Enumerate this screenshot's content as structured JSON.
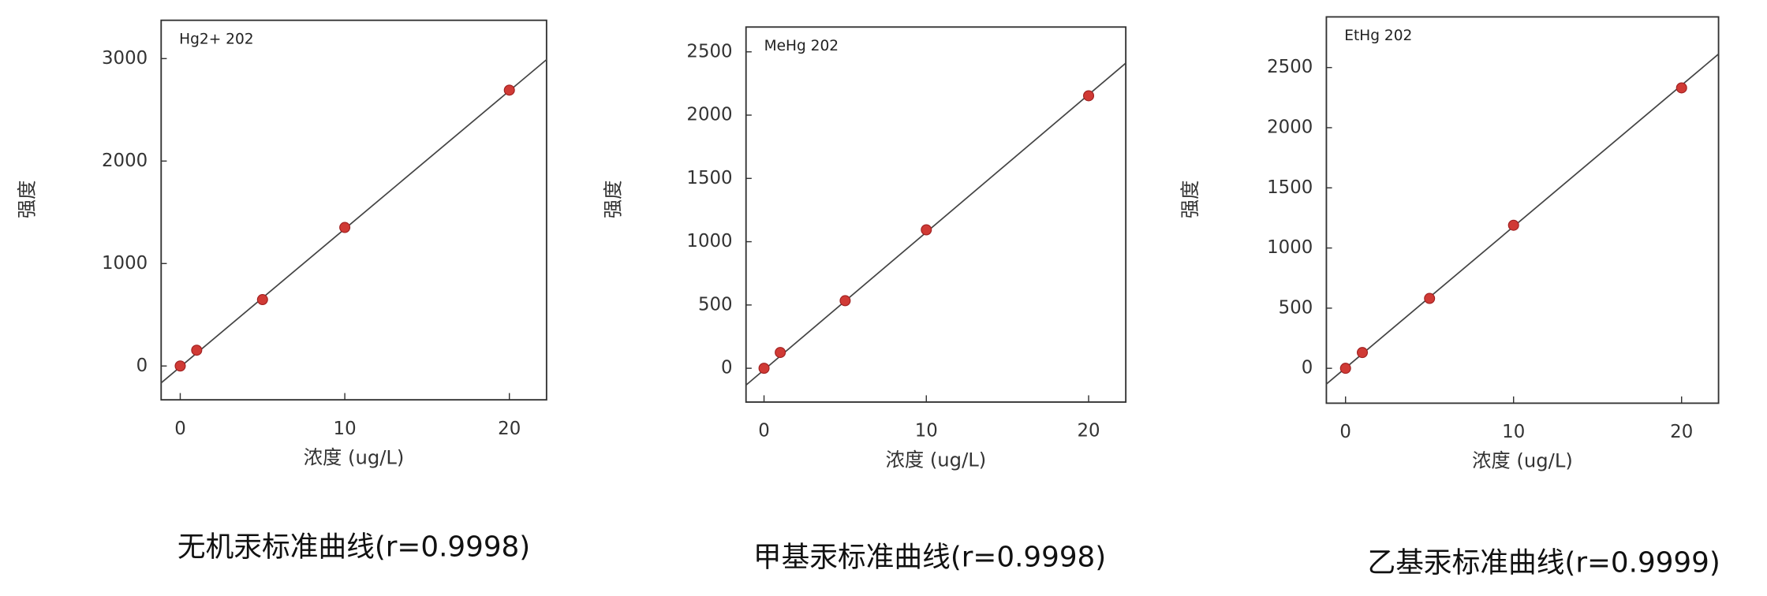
{
  "chart_data": [
    {
      "type": "scatter",
      "title": "Hg2+ 202",
      "caption": "无机汞标准曲线(r=0.9998)",
      "x_label": "浓度 (ug/L)",
      "y_label": "强度",
      "x": [
        0,
        1,
        5,
        10,
        20
      ],
      "values": [
        0,
        154,
        648,
        1352,
        2692
      ],
      "color": "#d03a35",
      "fit_line": {
        "x": [
          -1.16,
          22.26
        ],
        "values": [
          -165,
          2990
        ],
        "color": "#444444"
      },
      "xlim": [
        -1.16,
        22.26
      ],
      "ylim": [
        -330,
        3374
      ],
      "xticks": [
        0,
        10,
        20
      ],
      "yticks": [
        0,
        1000,
        2000,
        3000
      ]
    },
    {
      "type": "scatter",
      "title": "MeHg 202",
      "caption": "甲基汞标准曲线(r=0.9998)",
      "x_label": "浓度 (ug/L)",
      "y_label": "强度",
      "x": [
        0,
        1,
        5,
        10,
        20
      ],
      "values": [
        0,
        125,
        534,
        1094,
        2153
      ],
      "color": "#d03a35",
      "fit_line": {
        "x": [
          -1.11,
          22.29
        ],
        "values": [
          -133,
          2411
        ],
        "color": "#444444"
      },
      "xlim": [
        -1.11,
        22.29
      ],
      "ylim": [
        -267,
        2696
      ],
      "xticks": [
        0,
        10,
        20
      ],
      "yticks": [
        0,
        500,
        1000,
        1500,
        2000,
        2500
      ]
    },
    {
      "type": "scatter",
      "title": "EtHg 202",
      "caption": "乙基汞标准曲线(r=0.9999)",
      "x_label": "浓度 (ug/L)",
      "y_label": "强度",
      "x": [
        0,
        1,
        5,
        10,
        20
      ],
      "values": [
        0,
        131,
        581,
        1189,
        2331
      ],
      "color": "#d03a35",
      "fit_line": {
        "x": [
          -1.14,
          22.2
        ],
        "values": [
          -131,
          2612
        ],
        "color": "#444444"
      },
      "xlim": [
        -1.14,
        22.2
      ],
      "ylim": [
        -290,
        2921
      ],
      "xticks": [
        0,
        10,
        20
      ],
      "yticks": [
        0,
        500,
        1000,
        1500,
        2000,
        2500
      ]
    }
  ]
}
